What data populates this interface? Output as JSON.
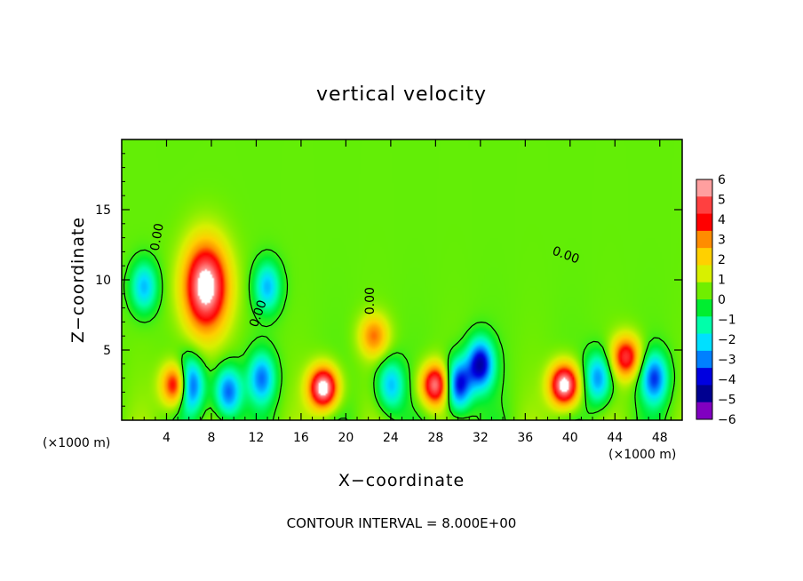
{
  "chart_data": {
    "type": "heatmap",
    "title": "vertical velocity",
    "xlabel": "X−coordinate",
    "ylabel": "Z−coordinate",
    "x_unit": "(×1000 m)",
    "y_unit": "(×1000 m)",
    "xlim": [
      0,
      50
    ],
    "ylim": [
      0,
      20
    ],
    "x_ticks": [
      "4",
      "8",
      "12",
      "16",
      "20",
      "24",
      "28",
      "32",
      "36",
      "40",
      "44",
      "48"
    ],
    "y_ticks": [
      "5",
      "10",
      "15"
    ],
    "colorbar": {
      "min": -6,
      "max": 6,
      "labels": [
        "6",
        "5",
        "4",
        "3",
        "2",
        "1",
        "0",
        "−1",
        "−2",
        "−3",
        "−4",
        "−5",
        "−6"
      ],
      "colors": [
        "#ff9f9f",
        "#ff4040",
        "#ff0000",
        "#ff8c00",
        "#ffd000",
        "#d8f000",
        "#70ee00",
        "#00ee30",
        "#00ffaa",
        "#00e0ff",
        "#0080ff",
        "#0000e0",
        "#000090",
        "#8000c0"
      ]
    },
    "contour_labels": [
      "0.00",
      "0.00",
      "0.00",
      "0.00"
    ],
    "features": [
      {
        "kind": "updraft",
        "x": 7.5,
        "z": 9.5,
        "amplitude": 6.5
      },
      {
        "kind": "updraft",
        "x": 39.5,
        "z": 2.5,
        "amplitude": 6.5
      },
      {
        "kind": "updraft",
        "x": 18,
        "z": 2.3,
        "amplitude": 6.5
      },
      {
        "kind": "updraft",
        "x": 45,
        "z": 4.5,
        "amplitude": 4.5
      },
      {
        "kind": "updraft",
        "x": 5,
        "z": 2.5,
        "amplitude": 6
      },
      {
        "kind": "updraft",
        "x": 28,
        "z": 2.5,
        "amplitude": 5.5
      },
      {
        "kind": "updraft",
        "x": 22.5,
        "z": 6,
        "amplitude": 3
      },
      {
        "kind": "downdraft",
        "x": 32,
        "z": 4,
        "amplitude": -5
      },
      {
        "kind": "downdraft",
        "x": 6,
        "z": 2.5,
        "amplitude": -6
      },
      {
        "kind": "downdraft",
        "x": 2,
        "z": 9.5,
        "amplitude": -3
      },
      {
        "kind": "downdraft",
        "x": 13,
        "z": 9.5,
        "amplitude": -3
      },
      {
        "kind": "downdraft",
        "x": 30,
        "z": 2.5,
        "amplitude": -5
      },
      {
        "kind": "downdraft",
        "x": 42.5,
        "z": 3,
        "amplitude": -3.5
      },
      {
        "kind": "downdraft",
        "x": 47.5,
        "z": 3,
        "amplitude": -4
      },
      {
        "kind": "downdraft",
        "x": 12.5,
        "z": 3,
        "amplitude": -3.5
      },
      {
        "kind": "downdraft",
        "x": 24,
        "z": 2.5,
        "amplitude": -3
      },
      {
        "kind": "downdraft",
        "x": 9.5,
        "z": 2,
        "amplitude": -4
      }
    ],
    "footer": "CONTOUR INTERVAL = 8.000E+00"
  }
}
